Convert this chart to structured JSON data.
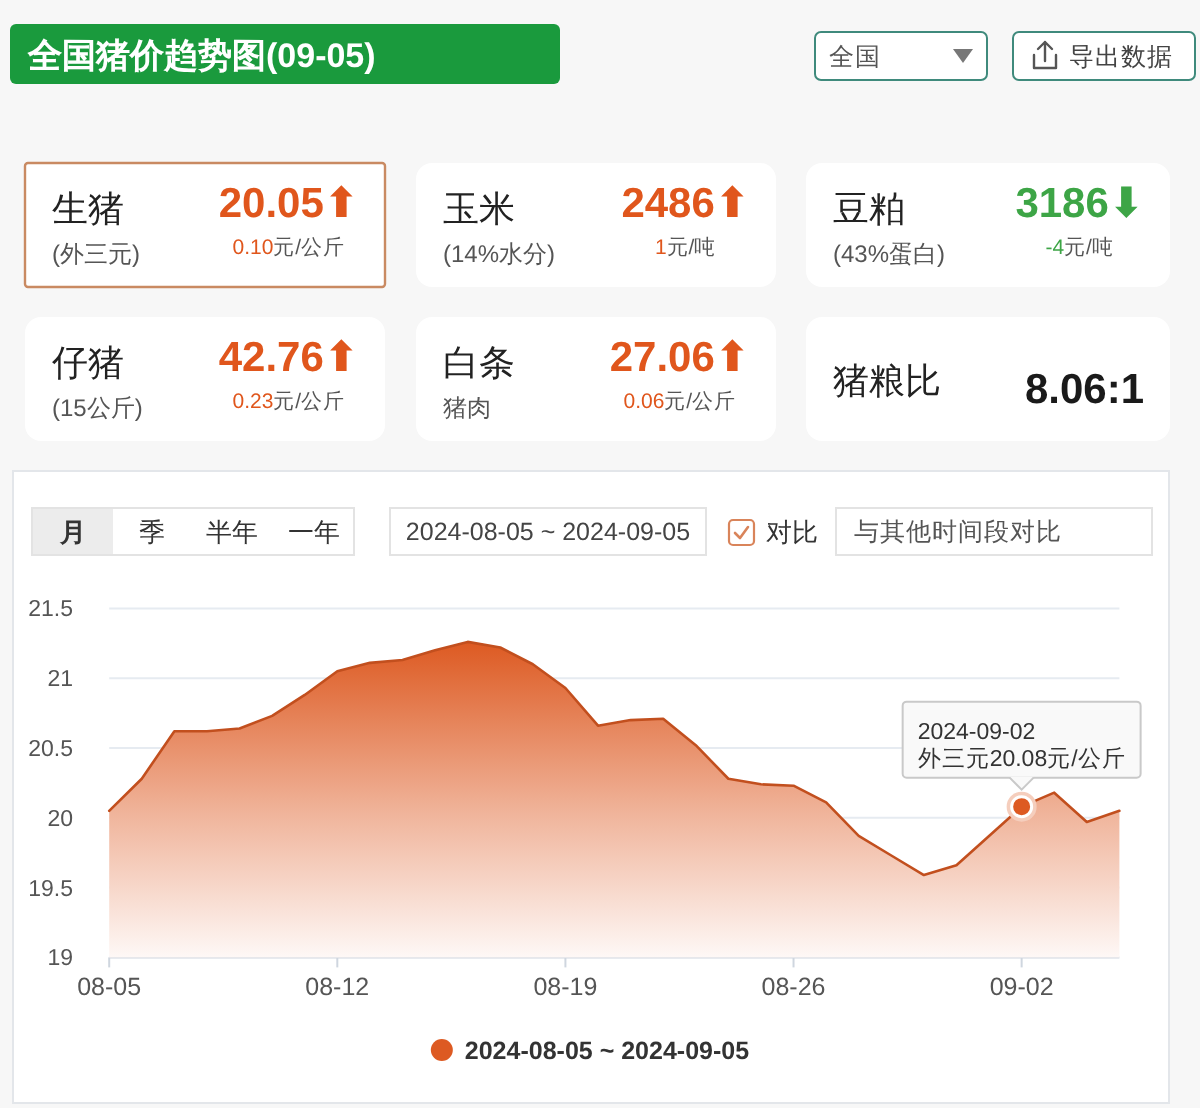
{
  "chart_data": [
    {
      "type": "other",
      "title": "全国猪价趋势图(09-05)",
      "annotations": [
        "全国",
        "导出数据"
      ]
    },
    {
      "type": "other",
      "title": "生猪",
      "subtitle": "(外三元)",
      "annotations": [
        "20.05⬆",
        "0.10元/公斤"
      ],
      "color": "#e0561c"
    },
    {
      "type": "other",
      "title": "玉米",
      "subtitle": "(14%水分)",
      "annotations": [
        "2486⬆",
        "1元/吨"
      ],
      "color": "#e0561c"
    },
    {
      "type": "other",
      "title": "豆粕",
      "subtitle": "(43%蛋白)",
      "annotations": [
        "3186⬇",
        "-4元/吨"
      ],
      "color": "#3da546"
    },
    {
      "type": "other",
      "title": "仔猪",
      "subtitle": "(15公斤)",
      "annotations": [
        "42.76⬆",
        "0.23元/公斤"
      ],
      "color": "#e0561c"
    },
    {
      "type": "other",
      "title": "白条",
      "subtitle": "猪肉",
      "annotations": [
        "27.06⬆",
        "0.06元/公斤"
      ],
      "color": "#e0561c"
    },
    {
      "type": "other",
      "title": "猪粮比",
      "annotations": [
        "8.06:1"
      ],
      "color": "#1a1a1a"
    },
    {
      "type": "area",
      "annotations": [
        "月",
        "季",
        "半年",
        "一年",
        "2024-08-05 ~ 2024-09-05",
        "对比",
        "与其他时间段对比",
        {
          "text": "2024-09-02\n外三元20.08元/公斤",
          "x": "2024-09-02",
          "y": 20.08
        }
      ],
      "x": [
        "2024-08-05",
        "2024-08-06",
        "2024-08-07",
        "2024-08-08",
        "2024-08-09",
        "2024-08-10",
        "2024-08-11",
        "2024-08-12",
        "2024-08-13",
        "2024-08-14",
        "2024-08-15",
        "2024-08-16",
        "2024-08-17",
        "2024-08-18",
        "2024-08-19",
        "2024-08-20",
        "2024-08-21",
        "2024-08-22",
        "2024-08-23",
        "2024-08-24",
        "2024-08-25",
        "2024-08-26",
        "2024-08-27",
        "2024-08-28",
        "2024-08-29",
        "2024-08-30",
        "2024-08-31",
        "2024-09-01",
        "2024-09-02",
        "2024-09-03",
        "2024-09-04",
        "2024-09-05"
      ],
      "series": [
        {
          "name": "2024-08-05 ~ 2024-09-05",
          "color": "#dd5a22",
          "values": [
            20.05,
            20.28,
            20.62,
            20.62,
            20.64,
            20.73,
            20.88,
            21.05,
            21.11,
            21.13,
            21.2,
            21.26,
            21.22,
            21.1,
            20.93,
            20.66,
            20.7,
            20.71,
            20.52,
            20.28,
            20.24,
            20.23,
            20.11,
            19.87,
            19.73,
            19.59,
            19.66,
            19.87,
            20.08,
            20.18,
            19.97,
            20.05
          ]
        }
      ],
      "xlim": [
        "2024-08-05",
        "2024-09-05"
      ],
      "xticks": [
        {
          "value": "2024-08-05",
          "label": "08-05"
        },
        {
          "value": "2024-08-12",
          "label": "08-12"
        },
        {
          "value": "2024-08-19",
          "label": "08-19"
        },
        {
          "value": "2024-08-26",
          "label": "08-26"
        },
        {
          "value": "2024-09-02",
          "label": "09-02"
        }
      ],
      "ylim": [
        19,
        21.5
      ],
      "yticks": [
        19,
        19.5,
        20,
        20.5,
        21,
        21.5
      ],
      "grid": "y",
      "legend": "bottom"
    }
  ]
}
